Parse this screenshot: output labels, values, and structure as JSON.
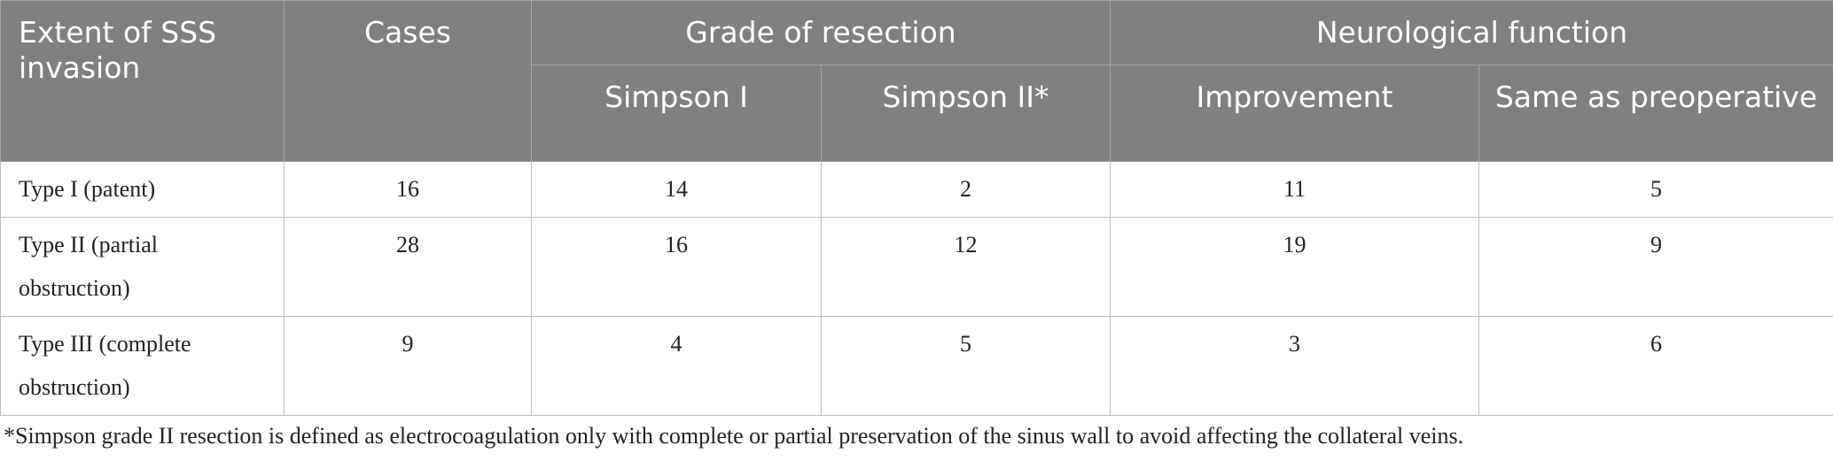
{
  "table": {
    "header": {
      "extent": "Extent of SSS invasion",
      "cases": "Cases",
      "grade": "Grade of resection",
      "neuro": "Neurological function",
      "sub": [
        "Simpson I",
        "Simpson II*",
        "Improvement",
        "Same as preoperative"
      ]
    },
    "rows": [
      [
        "Type I (patent)",
        16,
        14,
        2,
        11,
        5
      ],
      [
        "Type II (partial obstruction)",
        28,
        16,
        12,
        19,
        9
      ],
      [
        "Type III (complete obstruction)",
        9,
        4,
        5,
        3,
        6
      ]
    ]
  },
  "footnote": "*Simpson grade II resection is defined as electrocoagulation only with complete or partial preservation of the sinus wall to avoid affecting the collateral veins."
}
